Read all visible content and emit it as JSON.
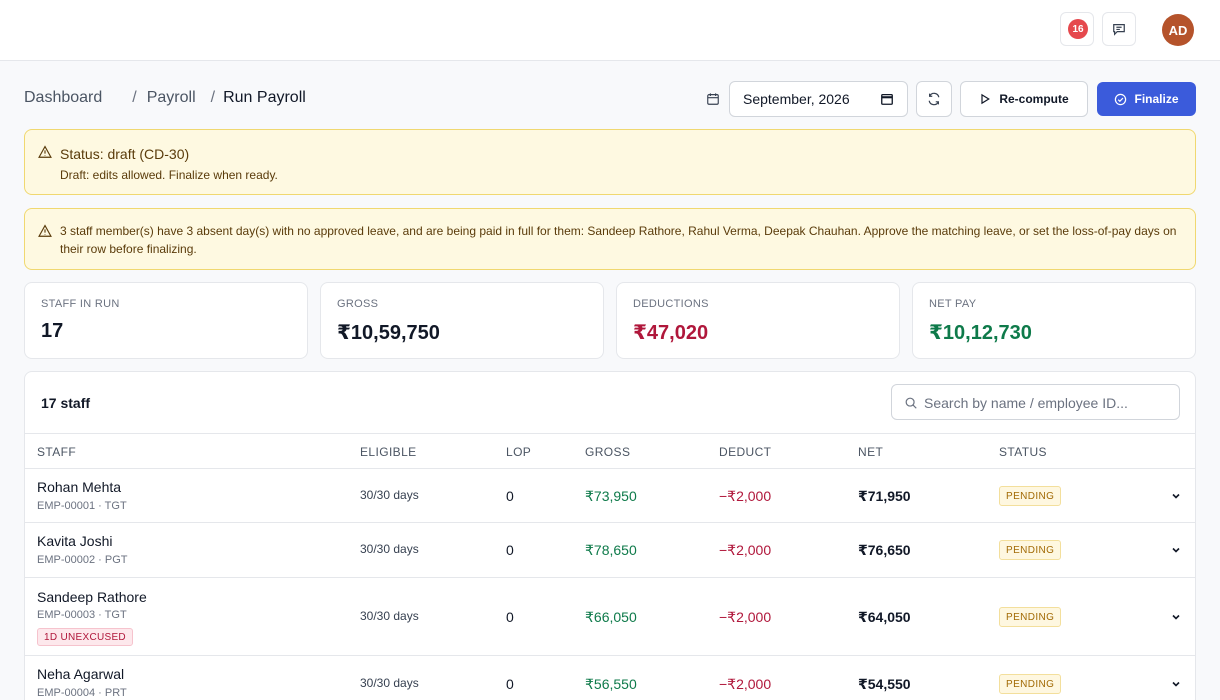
{
  "topbar": {
    "notification_count": "16"
  },
  "user": {
    "initials": "AD",
    "avatar_color": "#b5532b"
  },
  "breadcrumb": {
    "items": [
      "Dashboard",
      "Payroll",
      "Run Payroll"
    ]
  },
  "toolbar": {
    "month_value": "September, 2026",
    "recompute_label": "Re-compute",
    "finalize_label": "Finalize"
  },
  "status_alert": {
    "title": "Status: draft (CD-30)",
    "subtitle": "Draft: edits allowed. Finalize when ready."
  },
  "absent_alert": {
    "message": "3 staff member(s) have 3 absent day(s) with no approved leave, and are being paid in full for them: Sandeep Rathore, Rahul Verma, Deepak Chauhan. Approve the matching leave, or set the loss-of-pay days on their row before finalizing."
  },
  "stats": [
    {
      "label": "STAFF IN RUN",
      "value": "17"
    },
    {
      "label": "GROSS",
      "value": "₹10,59,750"
    },
    {
      "label": "DEDUCTIONS",
      "value": "₹47,020"
    },
    {
      "label": "NET PAY",
      "value": "₹10,12,730"
    }
  ],
  "table": {
    "title": "17 staff",
    "search_placeholder": "Search by name / employee ID...",
    "columns": [
      "STAFF",
      "ELIGIBLE",
      "LOP",
      "GROSS",
      "DEDUCT",
      "NET",
      "STATUS"
    ],
    "rows": [
      {
        "name": "Rohan Mehta",
        "meta": "EMP-00001 · TGT",
        "flag": "",
        "eligible": "30/30 days",
        "lop": "0",
        "gross": "₹73,950",
        "deduct": "−₹2,000",
        "net": "₹71,950",
        "status": "PENDING"
      },
      {
        "name": "Kavita Joshi",
        "meta": "EMP-00002 · PGT",
        "flag": "",
        "eligible": "30/30 days",
        "lop": "0",
        "gross": "₹78,650",
        "deduct": "−₹2,000",
        "net": "₹76,650",
        "status": "PENDING"
      },
      {
        "name": "Sandeep Rathore",
        "meta": "EMP-00003 · TGT",
        "flag": "1D UNEXCUSED",
        "eligible": "30/30 days",
        "lop": "0",
        "gross": "₹66,050",
        "deduct": "−₹2,000",
        "net": "₹64,050",
        "status": "PENDING"
      },
      {
        "name": "Neha Agarwal",
        "meta": "EMP-00004 · PRT",
        "flag": "",
        "eligible": "30/30 days",
        "lop": "0",
        "gross": "₹56,550",
        "deduct": "−₹2,000",
        "net": "₹54,550",
        "status": "PENDING"
      }
    ]
  },
  "colors": {
    "accent": "#3b5bdb",
    "positive": "#0e7a4a",
    "negative": "#b0173b",
    "warning_bg": "#fef9e1"
  }
}
